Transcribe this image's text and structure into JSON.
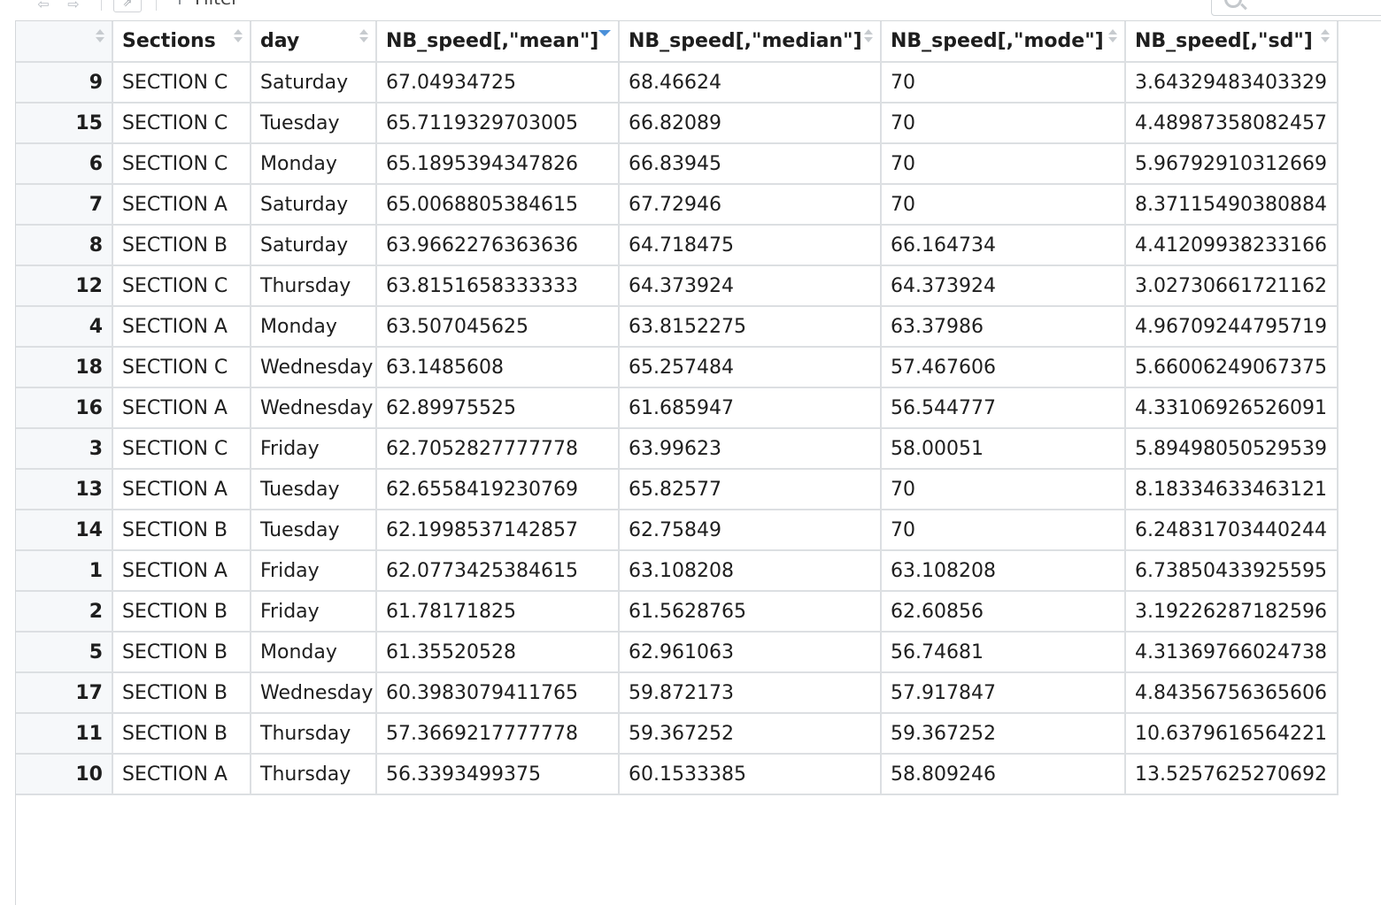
{
  "toolbar": {
    "filter_label": "Filter",
    "back_icon": "arrow-left-icon",
    "forward_icon": "arrow-right-icon",
    "popout_icon": "popout-window-icon",
    "search_icon": "search-icon",
    "search_placeholder": ""
  },
  "table": {
    "columns": [
      {
        "label": "",
        "sort": "none"
      },
      {
        "label": "Sections",
        "sort": "none"
      },
      {
        "label": "day",
        "sort": "none"
      },
      {
        "label": "NB_speed[,\"mean\"]",
        "sort": "descending"
      },
      {
        "label": "NB_speed[,\"median\"]",
        "sort": "none"
      },
      {
        "label": "NB_speed[,\"mode\"]",
        "sort": "none"
      },
      {
        "label": "NB_speed[,\"sd\"]",
        "sort": "none"
      }
    ],
    "rows": [
      [
        "9",
        "SECTION C",
        "Saturday",
        "67.04934725",
        "68.46624",
        "70",
        "3.64329483403329"
      ],
      [
        "15",
        "SECTION C",
        "Tuesday",
        "65.7119329703005",
        "66.82089",
        "70",
        "4.48987358082457"
      ],
      [
        "6",
        "SECTION C",
        "Monday",
        "65.1895394347826",
        "66.83945",
        "70",
        "5.96792910312669"
      ],
      [
        "7",
        "SECTION A",
        "Saturday",
        "65.0068805384615",
        "67.72946",
        "70",
        "8.37115490380884"
      ],
      [
        "8",
        "SECTION B",
        "Saturday",
        "63.9662276363636",
        "64.718475",
        "66.164734",
        "4.41209938233166"
      ],
      [
        "12",
        "SECTION C",
        "Thursday",
        "63.8151658333333",
        "64.373924",
        "64.373924",
        "3.02730661721162"
      ],
      [
        "4",
        "SECTION A",
        "Monday",
        "63.507045625",
        "63.8152275",
        "63.37986",
        "4.96709244795719"
      ],
      [
        "18",
        "SECTION C",
        "Wednesday",
        "63.1485608",
        "65.257484",
        "57.467606",
        "5.66006249067375"
      ],
      [
        "16",
        "SECTION A",
        "Wednesday",
        "62.89975525",
        "61.685947",
        "56.544777",
        "4.33106926526091"
      ],
      [
        "3",
        "SECTION C",
        "Friday",
        "62.7052827777778",
        "63.99623",
        "58.00051",
        "5.89498050529539"
      ],
      [
        "13",
        "SECTION A",
        "Tuesday",
        "62.6558419230769",
        "65.82577",
        "70",
        "8.18334633463121"
      ],
      [
        "14",
        "SECTION B",
        "Tuesday",
        "62.1998537142857",
        "62.75849",
        "70",
        "6.24831703440244"
      ],
      [
        "1",
        "SECTION A",
        "Friday",
        "62.0773425384615",
        "63.108208",
        "63.108208",
        "6.73850433925595"
      ],
      [
        "2",
        "SECTION B",
        "Friday",
        "61.78171825",
        "61.5628765",
        "62.60856",
        "3.19226287182596"
      ],
      [
        "5",
        "SECTION B",
        "Monday",
        "61.35520528",
        "62.961063",
        "56.74681",
        "4.31369766024738"
      ],
      [
        "17",
        "SECTION B",
        "Wednesday",
        "60.3983079411765",
        "59.872173",
        "57.917847",
        "4.84356756365606"
      ],
      [
        "11",
        "SECTION B",
        "Thursday",
        "57.3669217777778",
        "59.367252",
        "59.367252",
        "10.6379616564221"
      ],
      [
        "10",
        "SECTION A",
        "Thursday",
        "56.3393499375",
        "60.1533385",
        "58.809246",
        "13.5257625270692"
      ]
    ]
  }
}
